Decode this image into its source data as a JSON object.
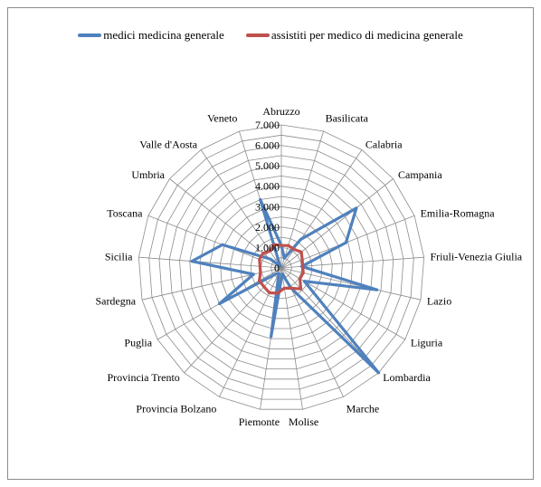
{
  "chart_data": {
    "type": "radar",
    "title": "",
    "categories": [
      "Abruzzo",
      "Basilicata",
      "Calabria",
      "Campania",
      "Emilia-Romagna",
      "Friuli-Venezia Giulia",
      "Lazio",
      "Liguria",
      "Lombardia",
      "Marche",
      "Molise",
      "Piemonte",
      "Provincia Bolzano",
      "Provincia Trento",
      "Puglia",
      "Sardegna",
      "Sicilia",
      "Toscana",
      "Umbria",
      "Valle d'Aosta",
      "Veneto"
    ],
    "series": [
      {
        "name": "medici medicina generale",
        "color": "#4f81bd",
        "values": [
          1100,
          500,
          1700,
          4700,
          3400,
          1000,
          4800,
          1300,
          7000,
          1100,
          300,
          3400,
          300,
          400,
          3500,
          1400,
          4400,
          3100,
          700,
          100,
          3500
        ]
      },
      {
        "name": "assistiti per medico di medicina generale",
        "color": "#c0504d",
        "values": [
          1100,
          1150,
          1100,
          1250,
          1100,
          1050,
          1100,
          1050,
          1400,
          1100,
          1000,
          1250,
          1350,
          1250,
          1250,
          1050,
          1050,
          1150,
          1150,
          1000,
          1200
        ]
      }
    ],
    "radial_axis": {
      "min": 0,
      "max": 7000,
      "step": 500,
      "tick_labels": [
        "0",
        "1.000",
        "2.000",
        "3.000",
        "4.000",
        "5.000",
        "6.000",
        "7.000"
      ]
    },
    "grid": true,
    "legend_position": "top"
  }
}
